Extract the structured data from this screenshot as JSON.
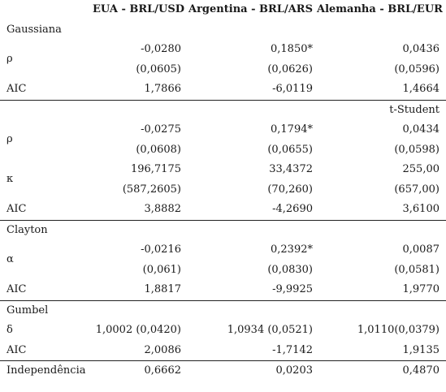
{
  "headers": [
    "EUA - BRL/USD",
    "Argentina - BRL/ARS",
    "Alemanha - BRL/EUR"
  ],
  "sections": {
    "gaussiana": {
      "title": "Gaussiana",
      "rho_label": "ρ",
      "rho": [
        "-0,0280",
        "0,1850*",
        "0,0436"
      ],
      "rho_se": [
        "(0,0605)",
        "(0,0626)",
        "(0,0596)"
      ],
      "aic_label": "AIC",
      "aic": [
        "1,7866",
        "-6,0119",
        "1,4664"
      ]
    },
    "tstudent": {
      "title": "t-Student",
      "rho_label": "ρ",
      "rho": [
        "-0,0275",
        "0,1794*",
        "0,0434"
      ],
      "rho_se": [
        "(0,0608)",
        "(0,0655)",
        "(0,0598)"
      ],
      "kappa_label": "κ",
      "kappa": [
        "196,7175",
        "33,4372",
        "255,00"
      ],
      "kappa_se": [
        "(587,2605)",
        "(70,260)",
        "(657,00)"
      ],
      "aic_label": "AIC",
      "aic": [
        "3,8882",
        "-4,2690",
        "3,6100"
      ]
    },
    "clayton": {
      "title": "Clayton",
      "alpha_label": "α",
      "alpha": [
        "-0,0216",
        "0,2392*",
        "0,0087"
      ],
      "alpha_se": [
        "(0,061)",
        "(0,0830)",
        "(0,0581)"
      ],
      "aic_label": "AIC",
      "aic": [
        "1,8817",
        "-9,9925",
        "1,9770"
      ]
    },
    "gumbel": {
      "title": "Gumbel",
      "delta_label": "δ",
      "delta": [
        "1,0002 (0,0420)",
        "1,0934 (0,0521)",
        "1,0110(0,0379)"
      ],
      "aic_label": "AIC",
      "aic": [
        "2,0086",
        "-1,7142",
        "1,9135"
      ]
    },
    "independencia": {
      "label": "Independência",
      "values": [
        "0,6662",
        "0,0203",
        "0,4870"
      ]
    }
  }
}
